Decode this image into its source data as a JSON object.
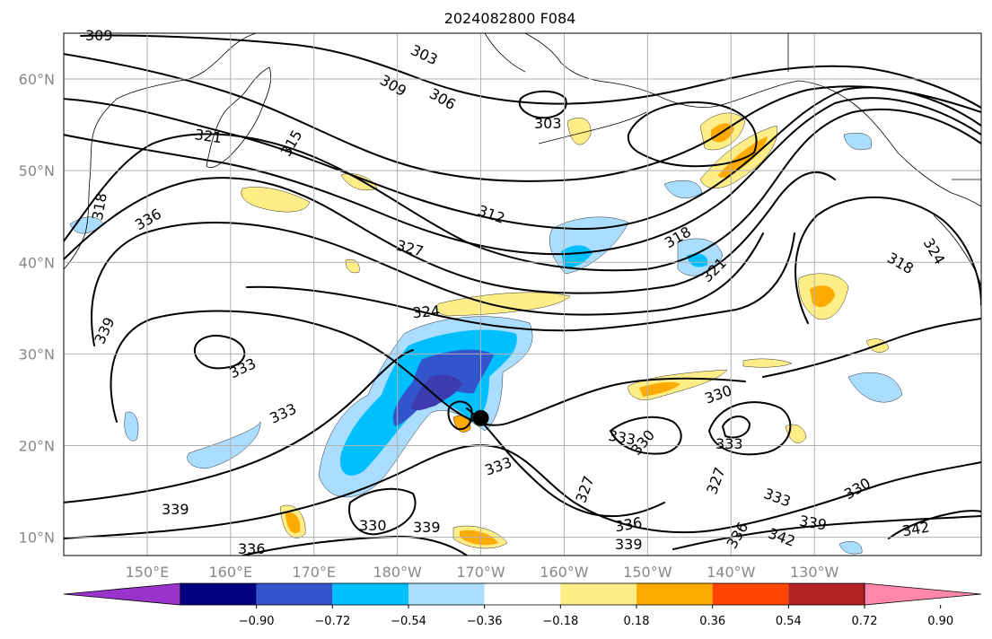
{
  "title": "2024082800 F084",
  "map": {
    "lon_range": [
      140,
      250
    ],
    "lat_range": [
      8,
      65
    ],
    "lat_ticks": [
      {
        "value": 10,
        "label": "10°N"
      },
      {
        "value": 20,
        "label": "20°N"
      },
      {
        "value": 30,
        "label": "30°N"
      },
      {
        "value": 40,
        "label": "40°N"
      },
      {
        "value": 50,
        "label": "50°N"
      },
      {
        "value": 60,
        "label": "60°N"
      }
    ],
    "lon_ticks": [
      {
        "value": 150,
        "label": "150°E"
      },
      {
        "value": 160,
        "label": "160°E"
      },
      {
        "value": 170,
        "label": "170°E"
      },
      {
        "value": 180,
        "label": "180°W"
      },
      {
        "value": 190,
        "label": "170°W"
      },
      {
        "value": 200,
        "label": "160°W"
      },
      {
        "value": 210,
        "label": "150°W"
      },
      {
        "value": 220,
        "label": "140°W"
      },
      {
        "value": 230,
        "label": "130°W"
      }
    ],
    "grid": true,
    "contour_labels": [
      "309",
      "303",
      "309",
      "306",
      "303",
      "321",
      "315",
      "318",
      "336",
      "312",
      "327",
      "318",
      "321",
      "318",
      "324",
      "339",
      "333",
      "333",
      "324",
      "330",
      "333",
      "333",
      "330",
      "333",
      "327",
      "327",
      "330",
      "339",
      "336",
      "336",
      "339",
      "333",
      "339",
      "342",
      "342",
      "330",
      "339",
      "336"
    ],
    "marker": {
      "lon": 190,
      "lat": 23
    }
  },
  "colorbar": {
    "colors": [
      "#9933cc",
      "#000080",
      "#3355cc",
      "#00bfff",
      "#aaddff",
      "#ffffff",
      "#ffee88",
      "#ffaa00",
      "#ff4400",
      "#b22222",
      "#ff88aa"
    ],
    "tick_labels": [
      "−0.90",
      "−0.72",
      "−0.54",
      "−0.36",
      "−0.18",
      "0.18",
      "0.36",
      "0.54",
      "0.72",
      "0.90"
    ],
    "extend": "both"
  }
}
